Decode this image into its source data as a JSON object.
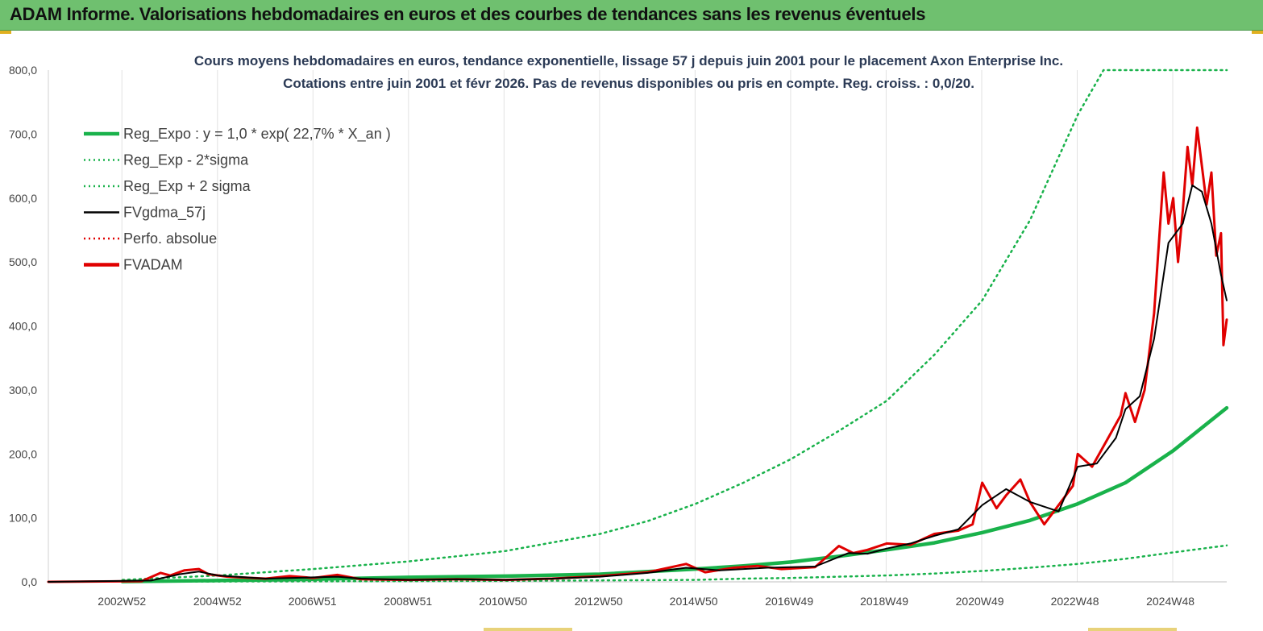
{
  "header": {
    "title": "ADAM Informe. Valorisations hebdomadaires en euros et des courbes de tendances sans les revenus éventuels"
  },
  "chart_data": {
    "type": "line",
    "title_line1": "Cours moyens hebdomadaires en euros, tendance exponentielle, lissage 57 j depuis juin 2001 pour le placement  Axon Enterprise Inc.",
    "title_line2": "Cotations entre juin 2001 et févr 2026. Pas de revenus disponibles ou pris en compte. Reg. croiss. : 0,0/20.",
    "xlabel": "",
    "ylabel": "",
    "ylim": [
      0,
      800
    ],
    "xlim": [
      2001.45,
      2026.12
    ],
    "yticks": [
      "0,0",
      "100,0",
      "200,0",
      "300,0",
      "400,0",
      "500,0",
      "600,0",
      "700,0",
      "800,0"
    ],
    "xtick_labels": [
      "2002W52",
      "2004W52",
      "2006W51",
      "2008W51",
      "2010W50",
      "2012W50",
      "2014W50",
      "2016W49",
      "2018W49",
      "2020W49",
      "2022W48",
      "2024W48"
    ],
    "xtick_positions": [
      2002.99,
      2004.99,
      2006.98,
      2008.98,
      2010.97,
      2012.97,
      2014.96,
      2016.96,
      2018.95,
      2020.95,
      2022.94,
      2024.94
    ],
    "legend": [
      {
        "name": "Reg_Expo : y = 1,0 * exp( 22,7% *  X_an )",
        "color": "#19b24b",
        "style": "solid-thick"
      },
      {
        "name": "Reg_Exp - 2*sigma",
        "color": "#19b24b",
        "style": "dotted"
      },
      {
        "name": "Reg_Exp + 2 sigma",
        "color": "#19b24b",
        "style": "dotted"
      },
      {
        "name": "FVgdma_57j",
        "color": "#000000",
        "style": "solid"
      },
      {
        "name": "Perfo. absolue",
        "color": "#e00000",
        "style": "dotted"
      },
      {
        "name": "FVADAM",
        "color": "#e00000",
        "style": "solid-thick"
      }
    ],
    "series": [
      {
        "name": "Reg_Expo",
        "x": [
          2003.0,
          2005.0,
          2007.0,
          2009.0,
          2011.0,
          2013.0,
          2015.0,
          2016.0,
          2017.0,
          2018.0,
          2019.0,
          2020.0,
          2021.0,
          2022.0,
          2023.0,
          2024.0,
          2025.0,
          2026.12
        ],
        "y": [
          0.5,
          2,
          4,
          7,
          9,
          12,
          20,
          25,
          31,
          40,
          50,
          61,
          77,
          96,
          122,
          155,
          205,
          272
        ]
      },
      {
        "name": "Reg_Exp - 2*sigma",
        "x": [
          2003.0,
          2007.0,
          2011.0,
          2015.0,
          2016.0,
          2017.0,
          2018.0,
          2019.0,
          2020.0,
          2021.0,
          2022.0,
          2023.0,
          2024.0,
          2025.0,
          2026.12
        ],
        "y": [
          0.2,
          0.8,
          1.5,
          3,
          5,
          6,
          8,
          10,
          13,
          17,
          22,
          28,
          36,
          46,
          57
        ]
      },
      {
        "name": "Reg_Exp + 2 sigma",
        "x": [
          2003.0,
          2005.0,
          2007.0,
          2009.0,
          2011.0,
          2013.0,
          2014.0,
          2015.0,
          2016.0,
          2017.0,
          2018.0,
          2019.0,
          2020.0,
          2021.0,
          2022.0,
          2023.0,
          2023.54,
          2026.12
        ],
        "y": [
          3,
          10,
          20,
          32,
          48,
          75,
          95,
          122,
          155,
          192,
          236,
          283,
          355,
          440,
          565,
          730,
          800,
          800
        ]
      },
      {
        "name": "FVgdma_57j",
        "x": [
          2001.45,
          2003.6,
          2004.2,
          2004.6,
          2005.0,
          2006.0,
          2007.0,
          2007.5,
          2008.0,
          2009.0,
          2010.0,
          2011.0,
          2012.0,
          2013.0,
          2014.0,
          2014.8,
          2015.5,
          2016.5,
          2017.5,
          2018.2,
          2018.6,
          2019.0,
          2019.5,
          2020.0,
          2020.5,
          2021.0,
          2021.5,
          2022.0,
          2022.6,
          2023.0,
          2023.4,
          2023.8,
          2024.0,
          2024.3,
          2024.6,
          2024.9,
          2025.2,
          2025.4,
          2025.6,
          2025.8,
          2026.0,
          2026.12
        ],
        "y": [
          0,
          2,
          12,
          16,
          10,
          5,
          7,
          8,
          5,
          3,
          4,
          3,
          5,
          8,
          14,
          22,
          18,
          22,
          24,
          45,
          44,
          52,
          60,
          72,
          82,
          120,
          145,
          125,
          110,
          180,
          185,
          225,
          270,
          290,
          380,
          530,
          560,
          620,
          610,
          560,
          480,
          440
        ]
      },
      {
        "name": "FVADAM",
        "x": [
          2001.45,
          2003.4,
          2003.8,
          2004.0,
          2004.3,
          2004.6,
          2004.8,
          2005.2,
          2006.0,
          2006.5,
          2007.0,
          2007.5,
          2008.0,
          2009.0,
          2010.0,
          2011.0,
          2012.0,
          2013.0,
          2014.0,
          2014.8,
          2015.2,
          2015.8,
          2016.3,
          2016.8,
          2017.5,
          2018.0,
          2018.3,
          2018.6,
          2019.0,
          2019.5,
          2020.0,
          2020.5,
          2020.8,
          2021.0,
          2021.3,
          2021.5,
          2021.8,
          2022.0,
          2022.3,
          2022.6,
          2022.9,
          2023.0,
          2023.3,
          2023.6,
          2023.9,
          2024.0,
          2024.2,
          2024.4,
          2024.6,
          2024.8,
          2024.9,
          2025.0,
          2025.1,
          2025.2,
          2025.3,
          2025.4,
          2025.5,
          2025.6,
          2025.7,
          2025.8,
          2025.9,
          2026.0,
          2026.05,
          2026.12
        ],
        "y": [
          0,
          1,
          14,
          10,
          18,
          20,
          12,
          8,
          5,
          9,
          6,
          11,
          4,
          3,
          4,
          3,
          5,
          9,
          15,
          28,
          15,
          22,
          25,
          20,
          23,
          56,
          45,
          50,
          60,
          58,
          75,
          80,
          90,
          155,
          115,
          135,
          160,
          125,
          90,
          120,
          150,
          200,
          180,
          220,
          260,
          295,
          250,
          300,
          420,
          640,
          560,
          600,
          500,
          580,
          680,
          620,
          710,
          650,
          590,
          640,
          510,
          545,
          370,
          410
        ]
      }
    ]
  }
}
